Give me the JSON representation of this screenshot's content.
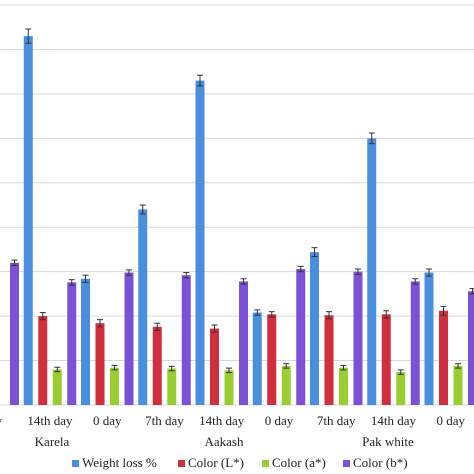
{
  "chart_data": {
    "type": "bar",
    "categories": [
      "day",
      "14th day",
      "0 day",
      "7th day",
      "14th day",
      "0  day",
      "7th day",
      "14th day",
      "0  day"
    ],
    "groups": [
      {
        "label": "Karela"
      },
      {
        "label": "Aakash"
      },
      {
        "label": "Pak white"
      }
    ],
    "series": [
      {
        "name": "Weight loss %",
        "color": "#4a8fde",
        "values": [
          null,
          41.5,
          14.2,
          22.0,
          36.5,
          10.4,
          17.2,
          30.0,
          14.9
        ],
        "errors": [
          null,
          0.8,
          0.4,
          0.5,
          0.6,
          0.3,
          0.5,
          0.6,
          0.4
        ]
      },
      {
        "name": "Color (L*)",
        "color": "#d12e3e",
        "values": [
          null,
          10.0,
          9.2,
          8.8,
          8.6,
          10.2,
          10.1,
          10.2,
          10.6
        ],
        "errors": [
          null,
          0.4,
          0.4,
          0.4,
          0.4,
          0.3,
          0.4,
          0.4,
          0.5
        ]
      },
      {
        "name": "Color (a*)",
        "color": "#9acd32",
        "values": [
          null,
          4.0,
          4.2,
          4.1,
          3.9,
          4.4,
          4.2,
          3.7,
          4.4
        ],
        "errors": [
          null,
          0.25,
          0.25,
          0.25,
          0.25,
          0.25,
          0.25,
          0.25,
          0.25
        ]
      },
      {
        "name": "Color  (b*)",
        "color": "#7b52d6",
        "values": [
          16.0,
          13.8,
          14.9,
          14.6,
          13.9,
          15.3,
          15.0,
          13.9,
          12.8
        ],
        "errors": [
          0.3,
          0.3,
          0.3,
          0.3,
          0.3,
          0.3,
          0.3,
          0.3,
          0.3
        ]
      }
    ],
    "ylim": [
      0,
      45
    ],
    "grid": true,
    "legend": "bottom"
  }
}
